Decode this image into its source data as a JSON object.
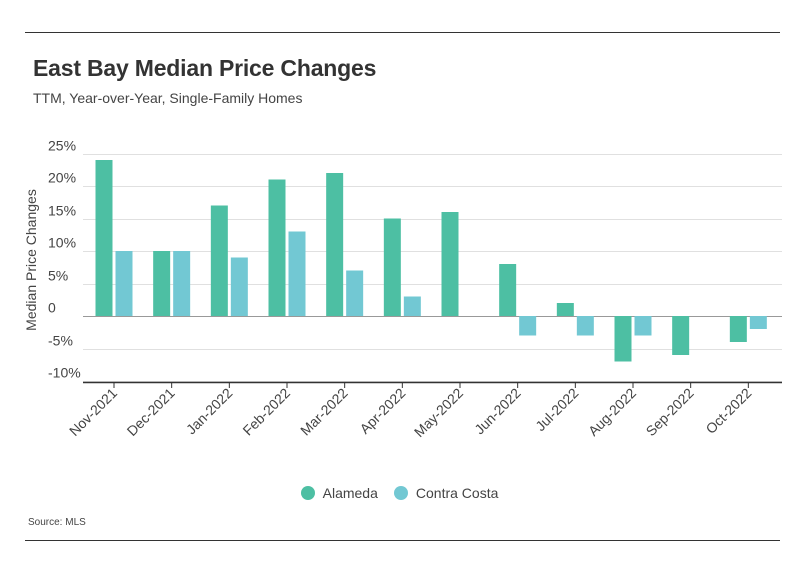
{
  "header": {
    "title": "East Bay Median Price Changes",
    "subtitle": "TTM, Year-over-Year, Single-Family Homes"
  },
  "footer": {
    "source": "Source: MLS"
  },
  "colors": {
    "Alameda": "#4dbfa3",
    "Contra Costa": "#72c8d3",
    "grid": "#e0e0e0",
    "axis": "#333333"
  },
  "chart_data": {
    "type": "bar",
    "title": "East Bay Median Price Changes",
    "subtitle": "TTM, Year-over-Year, Single-Family Homes",
    "xlabel": "",
    "ylabel": "Median Price Changes",
    "categories": [
      "Nov-2021",
      "Dec-2021",
      "Jan-2022",
      "Feb-2022",
      "Mar-2022",
      "Apr-2022",
      "May-2022",
      "Jun-2022",
      "Jul-2022",
      "Aug-2022",
      "Sep-2022",
      "Oct-2022"
    ],
    "series": [
      {
        "name": "Alameda",
        "values": [
          24,
          10,
          17,
          21,
          22,
          15,
          16,
          8,
          2,
          -7,
          -6,
          -4
        ]
      },
      {
        "name": "Contra Costa",
        "values": [
          10,
          10,
          9,
          13,
          7,
          3,
          null,
          -3,
          -3,
          -3,
          null,
          -2
        ]
      }
    ],
    "yticks": [
      "25%",
      "20%",
      "15%",
      "10%",
      "5%",
      "0",
      "-5%",
      "-10%"
    ],
    "ytick_values": [
      25,
      20,
      15,
      10,
      5,
      0,
      -5,
      -10
    ],
    "ylim": [
      -11,
      27
    ],
    "grid": true,
    "legend_position": "bottom-center"
  }
}
